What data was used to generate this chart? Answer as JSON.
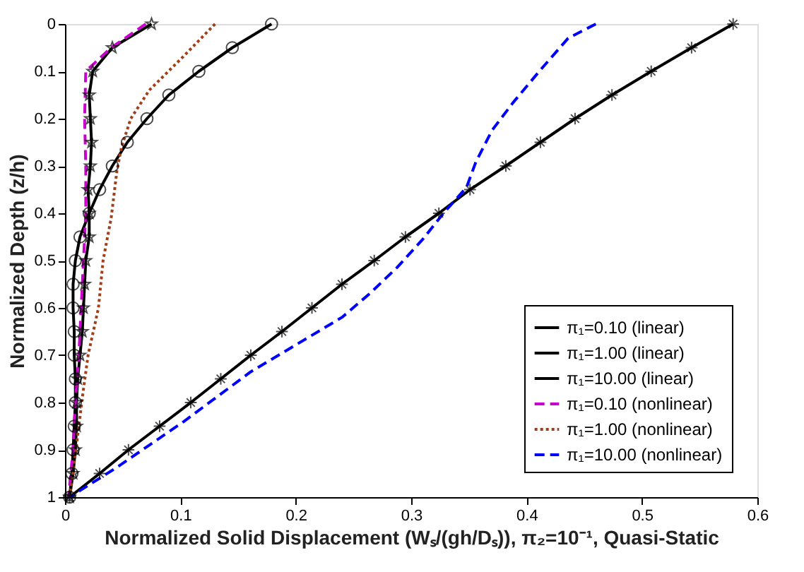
{
  "chart_data": {
    "type": "line",
    "xlabel": "Normalized Solid Displacement (Wₛ/(gh/Dₛ)), π₂=10⁻¹, Quasi-Static",
    "ylabel": "Normalized Depth (z/h)",
    "xlim": [
      0,
      0.6
    ],
    "xticks": [
      0,
      0.1,
      0.2,
      0.3,
      0.4,
      0.5,
      0.6
    ],
    "ylim": [
      1,
      0
    ],
    "yticks": [
      0,
      0.1,
      0.2,
      0.3,
      0.4,
      0.5,
      0.6,
      0.7,
      0.8,
      0.9,
      1
    ],
    "grid": false,
    "legend": "bottom right",
    "series": [
      {
        "name": "π₁=0.10 (linear)",
        "color": "#000000",
        "marker": "star",
        "line_style": "solid",
        "x": [
          0.075,
          0.041,
          0.024,
          0.021,
          0.022,
          0.023,
          0.022,
          0.02,
          0.021,
          0.021,
          0.018,
          0.017,
          0.016,
          0.015,
          0.013,
          0.011,
          0.01,
          0.01,
          0.009,
          0.007,
          0.004
        ],
        "values": [
          0,
          0.05,
          0.1,
          0.15,
          0.2,
          0.25,
          0.3,
          0.35,
          0.4,
          0.45,
          0.5,
          0.55,
          0.6,
          0.65,
          0.7,
          0.75,
          0.8,
          0.85,
          0.9,
          0.95,
          1
        ]
      },
      {
        "name": "π₁=1.00 (linear)",
        "color": "#000000",
        "marker": "circle",
        "line_style": "solid",
        "x": [
          0.179,
          0.145,
          0.116,
          0.09,
          0.071,
          0.054,
          0.041,
          0.03,
          0.021,
          0.013,
          0.009,
          0.007,
          0.007,
          0.008,
          0.008,
          0.009,
          0.009,
          0.008,
          0.007,
          0.006,
          0.004
        ],
        "values": [
          0,
          0.05,
          0.1,
          0.15,
          0.2,
          0.25,
          0.3,
          0.35,
          0.4,
          0.45,
          0.5,
          0.55,
          0.6,
          0.65,
          0.7,
          0.75,
          0.8,
          0.85,
          0.9,
          0.95,
          1
        ]
      },
      {
        "name": "π₁=10.00 (linear)",
        "color": "#000000",
        "marker": "cross",
        "line_style": "solid",
        "x": [
          0.579,
          0.543,
          0.508,
          0.474,
          0.442,
          0.412,
          0.382,
          0.351,
          0.324,
          0.295,
          0.268,
          0.24,
          0.214,
          0.188,
          0.161,
          0.135,
          0.109,
          0.082,
          0.055,
          0.03,
          0.004
        ],
        "values": [
          0,
          0.05,
          0.1,
          0.15,
          0.2,
          0.25,
          0.3,
          0.35,
          0.4,
          0.45,
          0.5,
          0.55,
          0.6,
          0.65,
          0.7,
          0.75,
          0.8,
          0.85,
          0.9,
          0.95,
          1
        ]
      },
      {
        "name": "π₁=0.10 (nonlinear)",
        "color": "#cc00cc",
        "marker": "none",
        "line_style": "dashed",
        "x": [
          0.07,
          0.04,
          0.018,
          0.017,
          0.018,
          0.018,
          0.016,
          0.014,
          0.012,
          0.009,
          0.007,
          0.003
        ],
        "values": [
          0,
          0.05,
          0.1,
          0.2,
          0.3,
          0.4,
          0.5,
          0.6,
          0.7,
          0.8,
          0.9,
          1
        ]
      },
      {
        "name": "π₁=1.00 (nonlinear)",
        "color": "#a0401a",
        "marker": "none",
        "line_style": "dotted",
        "x": [
          0.13,
          0.102,
          0.073,
          0.057,
          0.049,
          0.045,
          0.04,
          0.033,
          0.029,
          0.02,
          0.015,
          0.01,
          0.004
        ],
        "values": [
          0,
          0.07,
          0.14,
          0.2,
          0.26,
          0.31,
          0.41,
          0.5,
          0.6,
          0.7,
          0.79,
          0.89,
          1
        ]
      },
      {
        "name": "π₁=10.00 (nonlinear)",
        "color": "#0000ff",
        "marker": "none",
        "line_style": "dashed",
        "x": [
          0.46,
          0.436,
          0.411,
          0.388,
          0.37,
          0.356,
          0.348,
          0.328,
          0.31,
          0.288,
          0.264,
          0.24,
          0.161,
          0.103,
          0.045,
          0.004
        ],
        "values": [
          0,
          0.03,
          0.1,
          0.167,
          0.225,
          0.292,
          0.345,
          0.4,
          0.455,
          0.514,
          0.57,
          0.62,
          0.735,
          0.84,
          0.937,
          1
        ]
      }
    ]
  }
}
